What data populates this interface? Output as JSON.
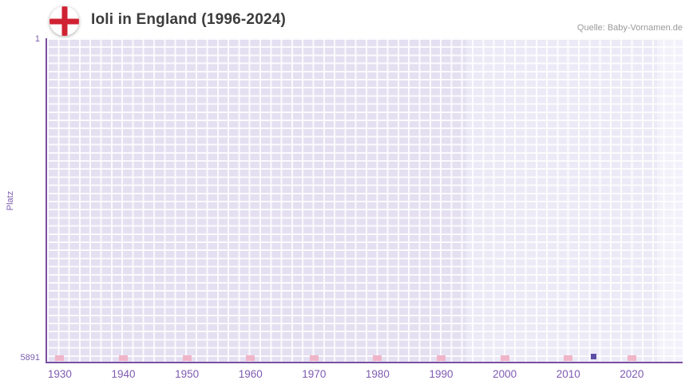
{
  "header": {
    "title": "Ioli in England (1996-2024)",
    "source": "Quelle: Baby-Vornamen.de"
  },
  "y_axis": {
    "label": "Platz"
  },
  "chart_data": {
    "type": "scatter",
    "title": "Ioli in England (1996-2024)",
    "xlabel": "",
    "ylabel": "Platz",
    "x_range": [
      1928,
      2028
    ],
    "y_range": [
      1,
      5891
    ],
    "y_axis_inverted": true,
    "x_ticks": [
      1930,
      1940,
      1950,
      1960,
      1970,
      1980,
      1990,
      2000,
      2010,
      2020
    ],
    "y_ticks": [
      1,
      5891
    ],
    "grid": true,
    "legend_position": "none",
    "series": [
      {
        "name": "Ioli",
        "color": "#5b4fa5",
        "points": [
          {
            "year": 2014,
            "rank": 5800
          }
        ]
      }
    ],
    "background_bands": [
      {
        "from": 1928,
        "to": 1994,
        "color": "#e4e0f1"
      },
      {
        "from": 1994,
        "to": 2024,
        "color": "#eceaf6"
      },
      {
        "from": 2024,
        "to": 2028,
        "color": "#f3f1fa"
      }
    ],
    "decade_marks": {
      "years": [
        1930,
        1940,
        1950,
        1960,
        1970,
        1980,
        1990,
        2000,
        2010,
        2020
      ],
      "color": "#f0b4c8"
    },
    "source": "Quelle: Baby-Vornamen.de"
  },
  "colors": {
    "axis_line": "#7a4fa3",
    "tick_label": "#7b5fae",
    "title_text": "#3c3c3c",
    "source_text": "#9a9a9a",
    "grid_line": "#ffffff",
    "flag_cross": "#cf2233",
    "point": "#5b4fa5",
    "decade_mark": "#f0b4c8"
  }
}
